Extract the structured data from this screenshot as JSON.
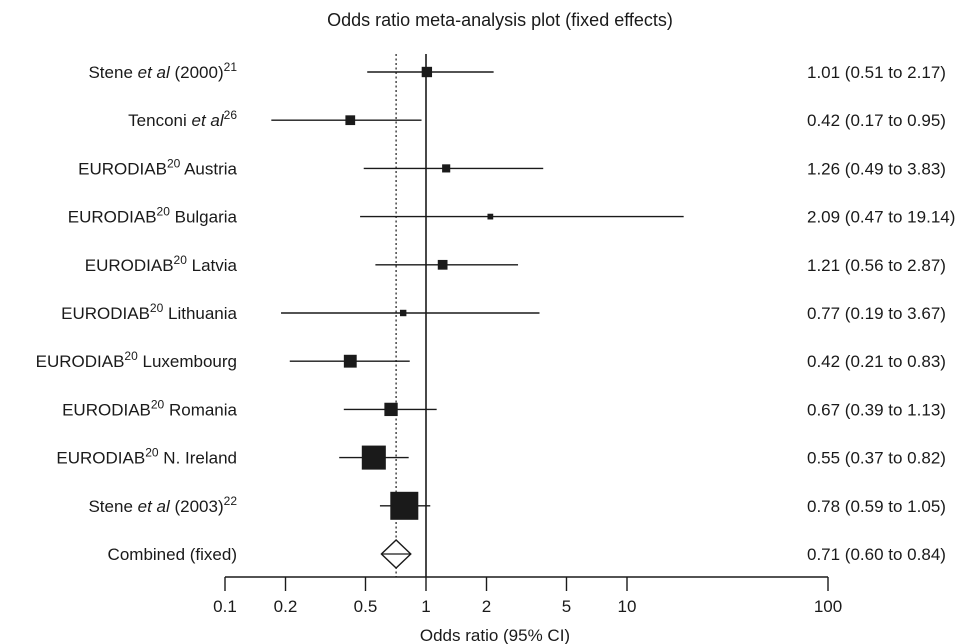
{
  "chart_data": {
    "type": "forest",
    "title": "Odds ratio meta-analysis plot (fixed effects)",
    "xlabel": "Odds ratio (95% CI)",
    "x_scale": "log",
    "xlim": [
      0.1,
      100
    ],
    "x_ticks": [
      {
        "value": 0.1,
        "label": "0.1"
      },
      {
        "value": 0.2,
        "label": "0.2"
      },
      {
        "value": 0.5,
        "label": "0.5"
      },
      {
        "value": 1,
        "label": "1"
      },
      {
        "value": 2,
        "label": "2"
      },
      {
        "value": 5,
        "label": "5"
      },
      {
        "value": 10,
        "label": "10"
      },
      {
        "value": 100,
        "label": "100"
      }
    ],
    "null_line": 1,
    "pooled_estimate_line": 0.71,
    "studies": [
      {
        "name": "Stene",
        "italic": " et al",
        "tail": " (2000)",
        "sup": "21",
        "or": 1.01,
        "lower": 0.51,
        "upper": 2.17,
        "ci_text": "1.01 (0.51 to 2.17)",
        "weight": 2.6
      },
      {
        "name": "Tenconi",
        "italic": " et al",
        "tail": "",
        "sup": "26",
        "or": 0.42,
        "lower": 0.17,
        "upper": 0.95,
        "ci_text": "0.42 (0.17 to 0.95)",
        "weight": 2.3
      },
      {
        "name": "EURODIAB",
        "italic": "",
        "tail": " Austria",
        "sup": "20",
        "or": 1.26,
        "lower": 0.49,
        "upper": 3.83,
        "ci_text": "1.26 (0.49 to 3.83)",
        "weight": 1.6
      },
      {
        "name": "EURODIAB",
        "italic": "",
        "tail": " Bulgaria",
        "sup": "20",
        "or": 2.09,
        "lower": 0.47,
        "upper": 19.14,
        "ci_text": "2.09 (0.47 to 19.14)",
        "weight": 0.8
      },
      {
        "name": "EURODIAB",
        "italic": "",
        "tail": " Latvia",
        "sup": "20",
        "or": 1.21,
        "lower": 0.56,
        "upper": 2.87,
        "ci_text": "1.21 (0.56 to 2.87)",
        "weight": 2.3
      },
      {
        "name": "EURODIAB",
        "italic": "",
        "tail": " Lithuania",
        "sup": "20",
        "or": 0.77,
        "lower": 0.19,
        "upper": 3.67,
        "ci_text": "0.77 (0.19 to 3.67)",
        "weight": 1.0
      },
      {
        "name": "EURODIAB",
        "italic": "",
        "tail": " Luxembourg",
        "sup": "20",
        "or": 0.42,
        "lower": 0.21,
        "upper": 0.83,
        "ci_text": "0.42 (0.21 to 0.83)",
        "weight": 4.0
      },
      {
        "name": "EURODIAB",
        "italic": "",
        "tail": " Romania",
        "sup": "20",
        "or": 0.67,
        "lower": 0.39,
        "upper": 1.13,
        "ci_text": "0.67 (0.39 to 1.13)",
        "weight": 4.3
      },
      {
        "name": "EURODIAB",
        "italic": "",
        "tail": " N. Ireland",
        "sup": "20",
        "or": 0.55,
        "lower": 0.37,
        "upper": 0.82,
        "ci_text": "0.55 (0.37 to 0.82)",
        "weight": 14.0
      },
      {
        "name": "Stene",
        "italic": " et al",
        "tail": " (2003)",
        "sup": "22",
        "or": 0.78,
        "lower": 0.59,
        "upper": 1.05,
        "ci_text": "0.78 (0.59 to 1.05)",
        "weight": 19.0
      }
    ],
    "combined": {
      "name": "Combined (fixed)",
      "or": 0.71,
      "lower": 0.6,
      "upper": 0.84,
      "ci_text": "0.71 (0.60 to 0.84)"
    }
  }
}
